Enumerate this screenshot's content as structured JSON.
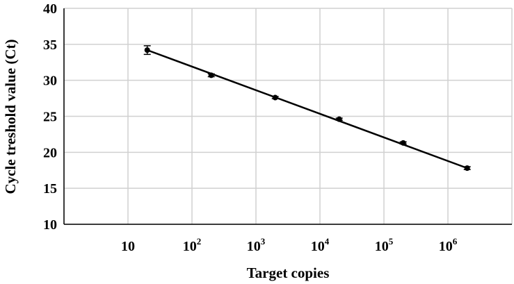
{
  "chart_data": {
    "type": "scatter",
    "xlabel": "Target copies",
    "ylabel": "Cycle treshold value (Ct)",
    "xscale": "log10",
    "xlim": [
      1,
      10000000
    ],
    "ylim": [
      10,
      40
    ],
    "y_ticks": [
      10,
      15,
      20,
      25,
      30,
      35,
      40
    ],
    "x_ticks": [
      {
        "value": 10,
        "base": "10",
        "exp": ""
      },
      {
        "value": 100,
        "base": "10",
        "exp": "2"
      },
      {
        "value": 1000,
        "base": "10",
        "exp": "3"
      },
      {
        "value": 10000,
        "base": "10",
        "exp": "4"
      },
      {
        "value": 100000,
        "base": "10",
        "exp": "5"
      },
      {
        "value": 1000000,
        "base": "10",
        "exp": "6"
      }
    ],
    "grid": true,
    "series": [
      {
        "points": [
          {
            "x": 20,
            "y": 34.2,
            "err": 0.6
          },
          {
            "x": 200,
            "y": 30.7,
            "err": 0.2
          },
          {
            "x": 2000,
            "y": 27.6,
            "err": 0.15
          },
          {
            "x": 20000,
            "y": 24.6,
            "err": 0.15
          },
          {
            "x": 200000,
            "y": 21.3,
            "err": 0.15
          },
          {
            "x": 2000000,
            "y": 17.8,
            "err": 0.2
          }
        ],
        "trendline": {
          "type": "linear-log",
          "x_from": 20,
          "x_to": 2000000,
          "y_from": 34.2,
          "y_to": 17.8
        }
      }
    ],
    "colors": {
      "marker": "#000000",
      "line": "#000000",
      "grid": "#d0d0d0",
      "axis": "#000000"
    }
  }
}
